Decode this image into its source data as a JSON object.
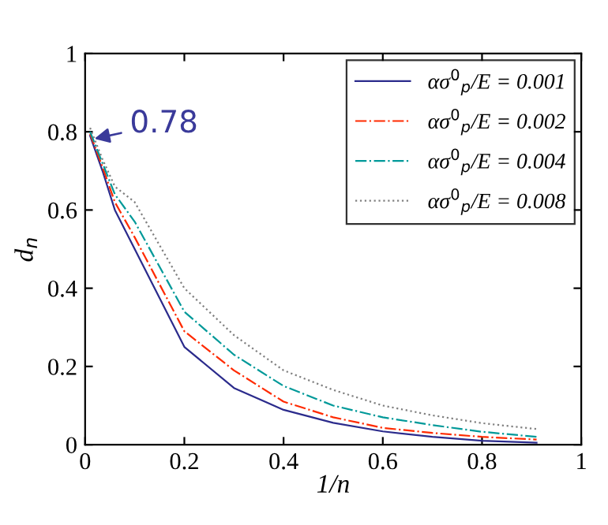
{
  "chart_data": {
    "type": "line",
    "xlabel": "1/n",
    "ylabel": "d$_{n}$",
    "x": [
      0.01,
      0.035,
      0.06,
      0.1,
      0.2,
      0.3,
      0.4,
      0.5,
      0.6,
      0.7,
      0.8,
      0.91
    ],
    "series": [
      {
        "name": "ασ$^{0}$$_{p}$/E = 0.001",
        "color": "#2b2b8c",
        "line_style": "solid",
        "values": [
          0.79,
          0.7,
          0.6,
          0.5,
          0.25,
          0.145,
          0.089,
          0.056,
          0.034,
          0.02,
          0.01,
          0.005
        ]
      },
      {
        "name": "ασ$^{0}$$_{p}$/E = 0.002",
        "color": "#ff2a00",
        "line_style": "dashdot",
        "values": [
          0.795,
          0.71,
          0.62,
          0.53,
          0.29,
          0.19,
          0.11,
          0.07,
          0.043,
          0.03,
          0.02,
          0.013
        ]
      },
      {
        "name": "ασ$^{0}$$_{p}$/E = 0.004",
        "color": "#009999",
        "line_style": "dashdot",
        "values": [
          0.8,
          0.72,
          0.64,
          0.57,
          0.34,
          0.23,
          0.15,
          0.1,
          0.07,
          0.05,
          0.033,
          0.02
        ]
      },
      {
        "name": "ασ$^{0}$$_{p}$/E = 0.008",
        "color": "#808080",
        "line_style": "dotted",
        "values": [
          0.81,
          0.73,
          0.66,
          0.62,
          0.4,
          0.28,
          0.19,
          0.14,
          0.1,
          0.075,
          0.055,
          0.04
        ]
      }
    ],
    "annotations": [
      {
        "text": "0.78",
        "x": 0.01,
        "y": 0.78
      }
    ],
    "xlim": [
      0,
      1
    ],
    "ylim": [
      0,
      1
    ],
    "xticks": [
      0,
      0.2,
      0.4,
      0.6,
      0.8,
      1
    ],
    "yticks": [
      0,
      0.2,
      0.4,
      0.6,
      0.8,
      1
    ],
    "grid": false,
    "legend": "top right"
  }
}
